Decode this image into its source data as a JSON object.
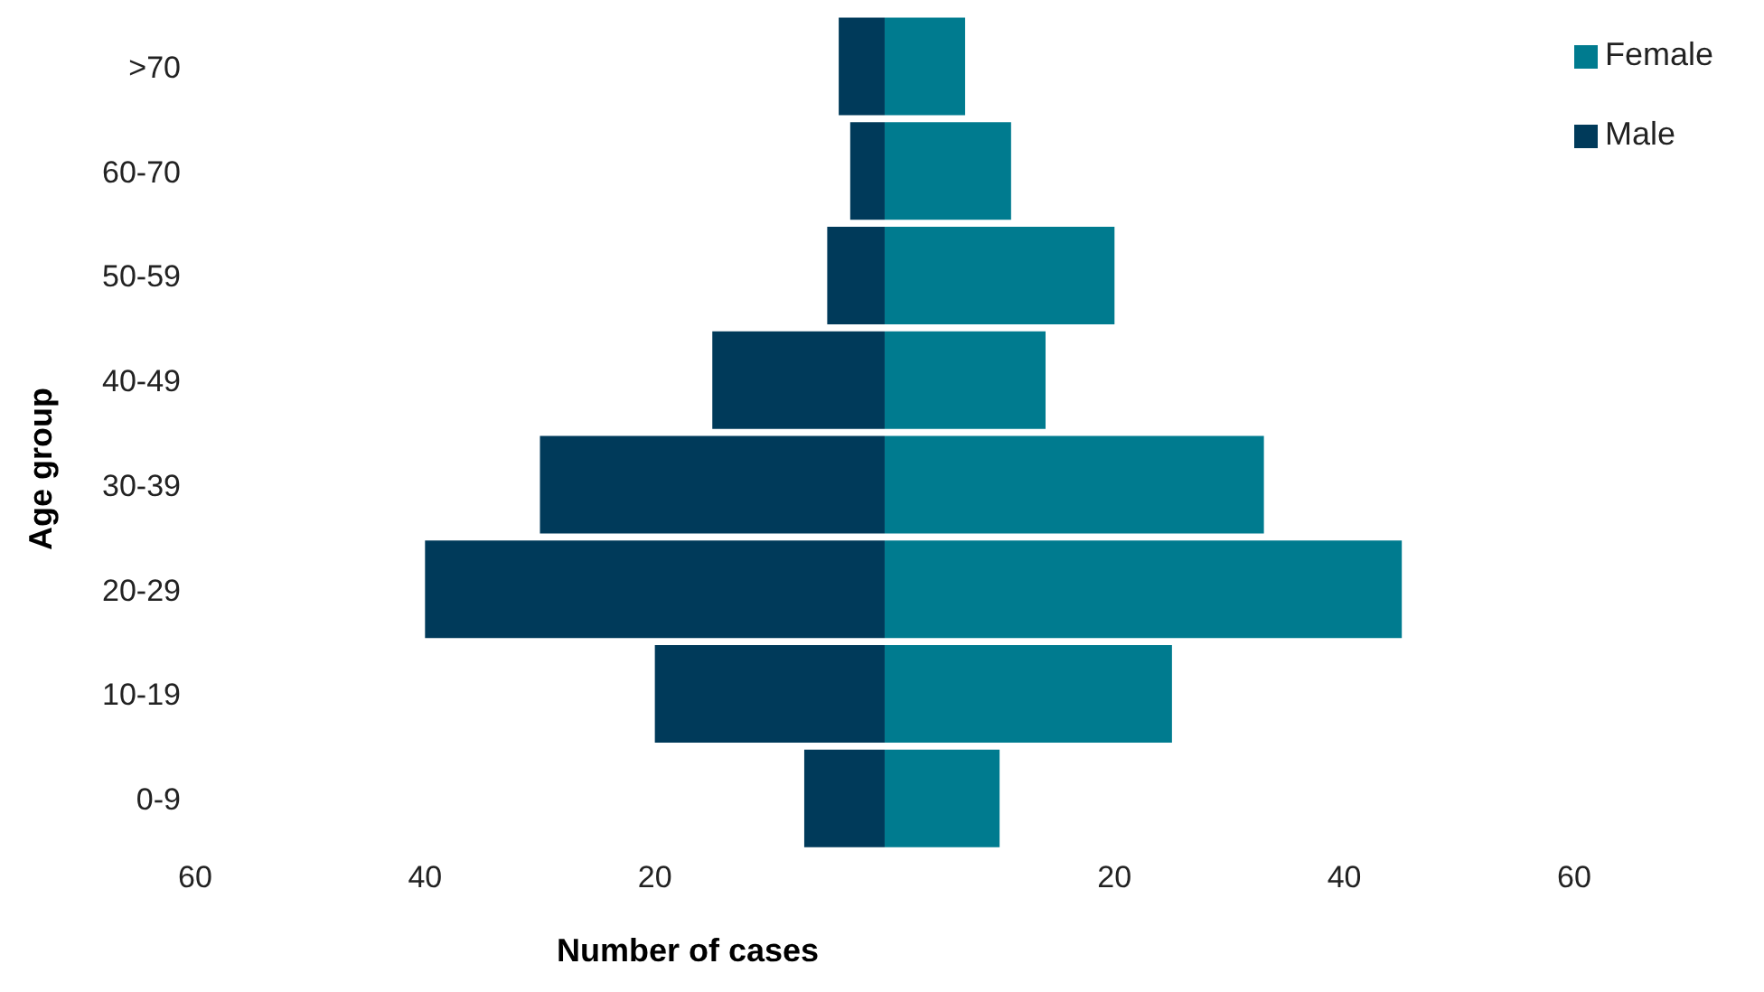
{
  "chart_data": {
    "type": "bar",
    "orientation": "horizontal",
    "stacked": true,
    "xlabel": "Number of cases",
    "ylabel": "Age group",
    "categories": [
      ">70",
      "60-70",
      "50-59",
      "40-49",
      "30-39",
      "20-29",
      "10-19",
      "0-9"
    ],
    "series": [
      {
        "name": "Female",
        "color": "#007b8f",
        "values": [
          7,
          11,
          20,
          14,
          33,
          45,
          25,
          10
        ]
      },
      {
        "name": "Male",
        "color": "#003a5a",
        "values": [
          -4,
          -3,
          -5,
          -15,
          -30,
          -40,
          -20,
          -7
        ]
      }
    ],
    "xlim": [
      -60,
      60
    ],
    "xticks": [
      {
        "value": -60,
        "label": "60"
      },
      {
        "value": -40,
        "label": "40"
      },
      {
        "value": -20,
        "label": "20"
      },
      {
        "value": 20,
        "label": "20"
      },
      {
        "value": 40,
        "label": "40"
      },
      {
        "value": 60,
        "label": "60"
      }
    ],
    "grid": false,
    "legend": "top right"
  }
}
